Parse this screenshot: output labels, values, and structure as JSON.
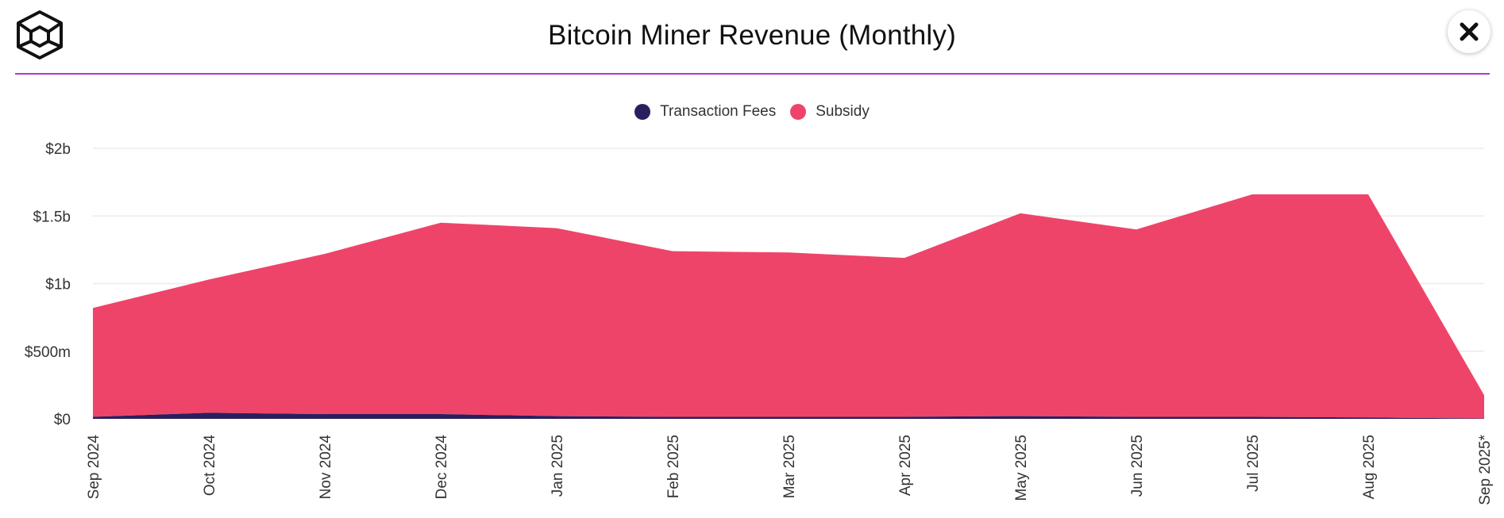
{
  "header": {
    "title": "Bitcoin Miner Revenue (Monthly)",
    "logo_icon": "cube-logo-icon",
    "close_icon": "close-icon"
  },
  "colors": {
    "fees": "#2a1f5e",
    "subsidy": "#ef4469",
    "divider": "#a83ad6",
    "grid": "#ebebeb"
  },
  "chart_data": {
    "type": "area",
    "stacked": true,
    "title": "Bitcoin Miner Revenue (Monthly)",
    "xlabel": "",
    "ylabel": "",
    "ylim": [
      0,
      2000000000
    ],
    "yticks": [
      0,
      500000000,
      1000000000,
      1500000000,
      2000000000
    ],
    "ytick_labels": [
      "$0",
      "$500m",
      "$1b",
      "$1.5b",
      "$2b"
    ],
    "grid": true,
    "legend_position": "top-center",
    "categories": [
      "Sep 2024",
      "Oct 2024",
      "Nov 2024",
      "Dec 2024",
      "Jan 2025",
      "Feb 2025",
      "Mar 2025",
      "Apr 2025",
      "May 2025",
      "Jun 2025",
      "Jul 2025",
      "Aug 2025",
      "Sep 2025*"
    ],
    "series": [
      {
        "name": "Transaction Fees",
        "color": "#2a1f5e",
        "values": [
          15000000,
          45000000,
          35000000,
          35000000,
          20000000,
          15000000,
          15000000,
          15000000,
          20000000,
          15000000,
          15000000,
          10000000,
          2000000
        ]
      },
      {
        "name": "Subsidy",
        "color": "#ef4469",
        "values": [
          805000000,
          985000000,
          1185000000,
          1415000000,
          1390000000,
          1225000000,
          1215000000,
          1175000000,
          1500000000,
          1385000000,
          1645000000,
          1650000000,
          173000000
        ]
      }
    ]
  }
}
